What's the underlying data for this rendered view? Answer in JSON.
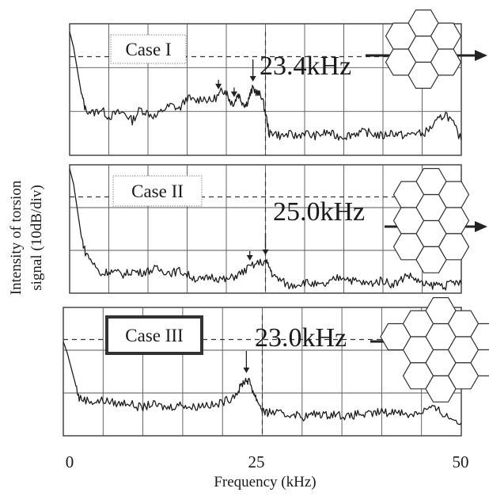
{
  "chart_data": {
    "type": "line",
    "xlabel": "Frequency (kHz)",
    "ylabel_lines": [
      "Intensity of torsion",
      "signal (10dB/div)"
    ],
    "x_ticks": [
      0,
      25,
      50
    ],
    "xlim": [
      0,
      50
    ],
    "grid": true,
    "panels": [
      {
        "case_label": "Case I",
        "peak_label": "23.4kHz",
        "peak_freq": 23.4,
        "dashed_x": 25,
        "lattice": "hex-7",
        "peak_marks": [
          19,
          21,
          23.4
        ],
        "series": {
          "x": [
            0,
            0.5,
            1,
            1.5,
            2,
            3,
            4,
            5,
            6,
            7,
            8,
            9,
            10,
            11,
            12,
            13,
            14,
            15,
            16,
            17,
            18,
            19,
            19.5,
            20,
            20.5,
            21,
            21.5,
            22,
            22.5,
            23,
            23.4,
            24,
            24.5,
            25,
            25.5,
            26,
            27,
            28,
            29,
            30,
            31,
            32,
            33,
            34,
            35,
            36,
            37,
            38,
            39,
            40,
            41,
            42,
            43,
            44,
            45,
            46,
            47,
            48,
            49,
            50
          ],
          "y": [
            1.9,
            1.5,
            0.9,
            0.3,
            -0.1,
            -0.2,
            -0.1,
            -0.3,
            -0.2,
            -0.2,
            -0.4,
            -0.1,
            -0.2,
            -0.3,
            -0.1,
            0.0,
            -0.1,
            0.2,
            0.1,
            0.2,
            0.1,
            0.25,
            0.4,
            0.35,
            0.1,
            0.05,
            0.3,
            0.1,
            0.0,
            0.25,
            0.45,
            0.3,
            0.25,
            -0.2,
            -0.75,
            -0.7,
            -0.8,
            -0.75,
            -0.8,
            -0.7,
            -0.8,
            -0.75,
            -0.7,
            -0.8,
            -0.8,
            -0.75,
            -0.7,
            -0.7,
            -0.75,
            -0.8,
            -0.7,
            -0.75,
            -0.8,
            -0.7,
            -0.75,
            -0.6,
            -0.4,
            -0.2,
            -0.5,
            -0.9
          ]
        }
      },
      {
        "case_label": "Case II",
        "peak_label": "25.0kHz",
        "peak_freq": 25.0,
        "dashed_x": 25,
        "lattice": "hex-10",
        "peak_marks": [
          23.0,
          25.0
        ],
        "series": {
          "x": [
            0,
            0.5,
            1,
            1.5,
            2,
            3,
            4,
            5,
            6,
            7,
            8,
            9,
            10,
            11,
            12,
            13,
            14,
            15,
            16,
            17,
            18,
            19,
            20,
            21,
            22,
            23,
            24,
            25,
            25.5,
            26,
            27,
            28,
            29,
            30,
            31,
            32,
            33,
            34,
            35,
            36,
            37,
            38,
            39,
            40,
            41,
            42,
            43,
            44,
            45,
            46,
            47,
            48,
            49,
            50
          ],
          "y": [
            2.0,
            1.6,
            0.9,
            0.2,
            -0.2,
            -0.5,
            -0.8,
            -0.7,
            -0.75,
            -0.8,
            -0.7,
            -0.75,
            -0.7,
            -0.65,
            -0.7,
            -0.75,
            -0.7,
            -0.8,
            -0.9,
            -0.95,
            -0.85,
            -0.9,
            -0.95,
            -0.85,
            -0.75,
            -0.6,
            -0.5,
            -0.45,
            -0.6,
            -0.85,
            -0.95,
            -1.1,
            -1.05,
            -1.0,
            -1.05,
            -1.1,
            -1.05,
            -0.9,
            -0.85,
            -0.95,
            -1.0,
            -1.05,
            -1.0,
            -0.95,
            -1.05,
            -1.0,
            -0.8,
            -0.9,
            -1.05,
            -1.1,
            -1.05,
            -1.1,
            -1.0,
            -1.05
          ]
        }
      },
      {
        "case_label": "Case III",
        "peak_label": "23.0kHz",
        "peak_freq": 23.0,
        "dashed_x": 25,
        "lattice": "hex-13",
        "peak_marks": [
          23.0
        ],
        "series": {
          "x": [
            0,
            0.5,
            1,
            1.5,
            2,
            3,
            4,
            5,
            6,
            7,
            8,
            9,
            10,
            11,
            12,
            13,
            14,
            15,
            16,
            17,
            18,
            19,
            20,
            21,
            22,
            22.5,
            23,
            23.5,
            24,
            24.5,
            25,
            25.5,
            26,
            27,
            28,
            29,
            30,
            31,
            32,
            33,
            34,
            35,
            36,
            37,
            38,
            39,
            40,
            41,
            42,
            43,
            44,
            45,
            46,
            47,
            48,
            49,
            50
          ],
          "y": [
            1.2,
            0.9,
            0.5,
            0.1,
            -0.3,
            -0.35,
            -0.4,
            -0.35,
            -0.4,
            -0.45,
            -0.4,
            -0.5,
            -0.55,
            -0.45,
            -0.5,
            -0.55,
            -0.5,
            -0.45,
            -0.55,
            -0.5,
            -0.45,
            -0.5,
            -0.4,
            -0.3,
            -0.1,
            0.1,
            0.2,
            0.1,
            -0.2,
            -0.4,
            -0.6,
            -0.7,
            -0.65,
            -0.7,
            -0.75,
            -0.7,
            -0.8,
            -0.75,
            -0.7,
            -0.75,
            -0.7,
            -0.75,
            -0.8,
            -0.7,
            -0.75,
            -0.7,
            -0.65,
            -0.7,
            -0.6,
            -0.75,
            -0.7,
            -0.65,
            -0.55,
            -0.6,
            -0.75,
            -0.85,
            -0.95
          ]
        }
      }
    ]
  }
}
